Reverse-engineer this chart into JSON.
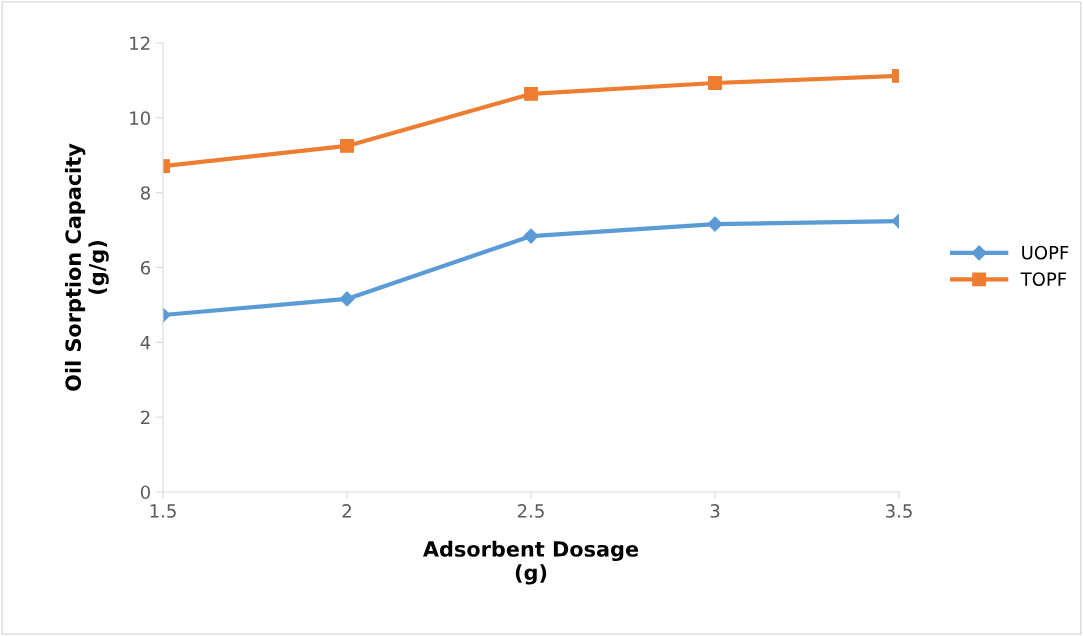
{
  "chart_data": {
    "type": "line",
    "xlabel": "Adsorbent Dosage\n(g)",
    "ylabel": "Oil Sorption Capacity\n(g/g)",
    "categories": [
      "1.5",
      "2",
      "2.5",
      "3",
      "3.5"
    ],
    "series": [
      {
        "name": "UOPF",
        "color": "#5b9bd5",
        "marker": "diamond",
        "values": [
          4.73,
          5.16,
          6.84,
          7.16,
          7.24
        ]
      },
      {
        "name": "TOPF",
        "color": "#ed7d31",
        "marker": "square",
        "values": [
          8.71,
          9.25,
          10.64,
          10.93,
          11.12
        ]
      }
    ],
    "ylim": [
      0,
      12
    ],
    "yticks": [
      0,
      2,
      4,
      6,
      8,
      10,
      12
    ],
    "grid": false,
    "legend": "right",
    "line_style": "solid"
  }
}
